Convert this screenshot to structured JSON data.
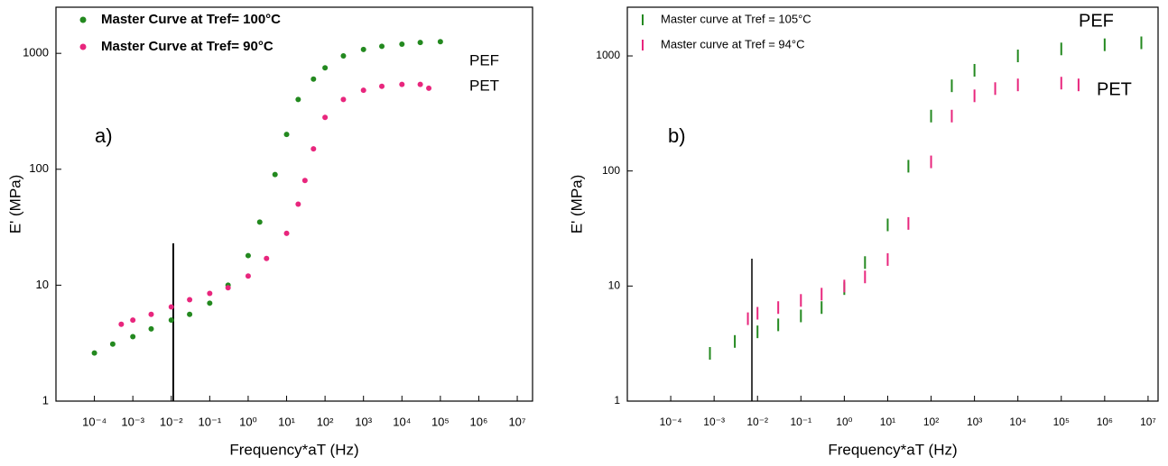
{
  "chart_data": [
    {
      "type": "scatter",
      "marker": "circle",
      "x_label": "Frequency*aT (Hz)",
      "y_label": "E' (MPa)",
      "annotations": [
        "a)",
        "PEF",
        "PET"
      ],
      "legend": "upper left",
      "xscale": "log",
      "yscale": "log",
      "xlim": [
        1e-05,
        25000000
      ],
      "ylim": [
        1,
        2500
      ],
      "xticks": [
        {
          "value": 0.0001,
          "label": "10⁻⁴"
        },
        {
          "value": 0.001,
          "label": "10⁻³"
        },
        {
          "value": 0.01,
          "label": "10⁻²"
        },
        {
          "value": 0.1,
          "label": "10⁻¹"
        },
        {
          "value": 1,
          "label": "10⁰"
        },
        {
          "value": 10,
          "label": "10¹"
        },
        {
          "value": 100,
          "label": "10²"
        },
        {
          "value": 1000,
          "label": "10³"
        },
        {
          "value": 10000,
          "label": "10⁴"
        },
        {
          "value": 100000,
          "label": "10⁵"
        },
        {
          "value": 1000000,
          "label": "10⁶"
        },
        {
          "value": 10000000,
          "label": "10⁷"
        }
      ],
      "yticks": [
        1,
        10,
        100,
        1000
      ],
      "series": [
        {
          "name": "Master Curve at Tref= 100°C",
          "color": "#23891f",
          "x": [
            0.0001,
            0.0003,
            0.001,
            0.003,
            0.01,
            0.03,
            0.1,
            0.3,
            1,
            2,
            5,
            10,
            20,
            50,
            100,
            300,
            1000,
            3000,
            10000,
            30000,
            100000
          ],
          "values": [
            2.6,
            3.1,
            3.6,
            4.2,
            5,
            5.6,
            7,
            10,
            18,
            35,
            90,
            200,
            400,
            600,
            750,
            950,
            1080,
            1150,
            1200,
            1240,
            1260
          ]
        },
        {
          "name": "Master Curve at Tref= 90°C",
          "color": "#e8267d",
          "x": [
            0.0005,
            0.001,
            0.003,
            0.01,
            0.03,
            0.1,
            0.3,
            1,
            3,
            10,
            20,
            30,
            50,
            100,
            300,
            1000,
            3000,
            10000,
            30000,
            50000
          ],
          "values": [
            4.6,
            5,
            5.6,
            6.5,
            7.5,
            8.5,
            9.5,
            12,
            17,
            28,
            50,
            80,
            150,
            280,
            400,
            480,
            520,
            540,
            540,
            500
          ]
        }
      ]
    },
    {
      "type": "scatter",
      "marker": "bar",
      "x_label": "Frequency*aT (Hz)",
      "y_label": "E' (MPa)",
      "annotations": [
        "b)",
        "PEF",
        "PET"
      ],
      "legend": "upper left",
      "xscale": "log",
      "yscale": "log",
      "xlim": [
        1e-05,
        17000000
      ],
      "ylim": [
        1,
        2650
      ],
      "xticks": [
        {
          "value": 0.0001,
          "label": "10⁻⁴"
        },
        {
          "value": 0.001,
          "label": "10⁻³"
        },
        {
          "value": 0.01,
          "label": "10⁻²"
        },
        {
          "value": 0.1,
          "label": "10⁻¹"
        },
        {
          "value": 1,
          "label": "10⁰"
        },
        {
          "value": 10,
          "label": "10¹"
        },
        {
          "value": 100,
          "label": "10²"
        },
        {
          "value": 1000,
          "label": "10³"
        },
        {
          "value": 10000,
          "label": "10⁴"
        },
        {
          "value": 100000,
          "label": "10⁵"
        },
        {
          "value": 1000000,
          "label": "10⁶"
        },
        {
          "value": 10000000,
          "label": "10⁷"
        }
      ],
      "yticks": [
        1,
        10,
        100,
        1000
      ],
      "series": [
        {
          "name": "Master curve at Tref = 105°C",
          "color": "#23891f",
          "x": [
            0.0008,
            0.003,
            0.01,
            0.03,
            0.1,
            0.3,
            1,
            3,
            10,
            30,
            100,
            300,
            1000,
            10000,
            100000,
            1000000,
            7000000
          ],
          "values": [
            2.6,
            3.3,
            4,
            4.6,
            5.5,
            6.5,
            9.5,
            16,
            34,
            110,
            300,
            550,
            750,
            1000,
            1150,
            1250,
            1300
          ]
        },
        {
          "name": "Master curve at Tref = 94°C",
          "color": "#e8267d",
          "x": [
            0.006,
            0.01,
            0.03,
            0.1,
            0.3,
            1,
            3,
            10,
            30,
            100,
            300,
            1000,
            3000,
            10000,
            100000,
            250000
          ],
          "values": [
            5.2,
            5.8,
            6.5,
            7.5,
            8.5,
            10,
            12,
            17,
            35,
            120,
            300,
            450,
            520,
            560,
            580,
            560
          ]
        }
      ]
    }
  ]
}
